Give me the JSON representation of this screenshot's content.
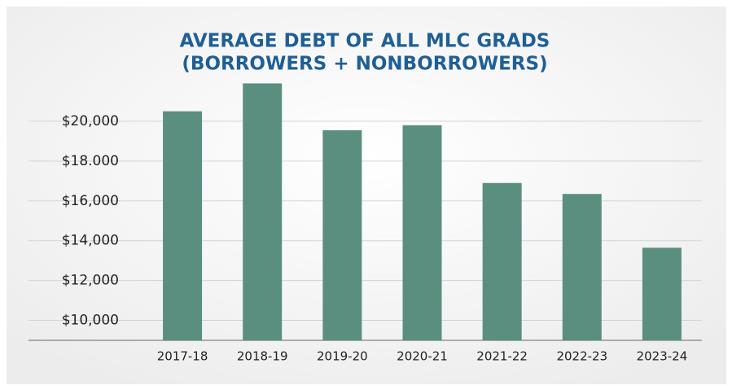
{
  "chart_data": {
    "type": "bar",
    "title": [
      "AVERAGE DEBT OF ALL MLC GRADS",
      "(BORROWERS + NONBORROWERS)"
    ],
    "categories": [
      "2017-18",
      "2018-19",
      "2019-20",
      "2020-21",
      "2021-22",
      "2022-23",
      "2023-24"
    ],
    "values": [
      20500,
      21900,
      19550,
      19800,
      16900,
      16350,
      13650
    ],
    "color": "#5a8f80",
    "ylim": [
      9000,
      22000
    ],
    "yticks": [
      {
        "value": 10000,
        "label": "$10,000"
      },
      {
        "value": 12000,
        "label": "$12,000"
      },
      {
        "value": 14000,
        "label": "$14,000"
      },
      {
        "value": 16000,
        "label": "$16,000"
      },
      {
        "value": 18000,
        "label": "$18.000"
      },
      {
        "value": 20000,
        "label": "$20,000"
      }
    ],
    "grid": true
  }
}
